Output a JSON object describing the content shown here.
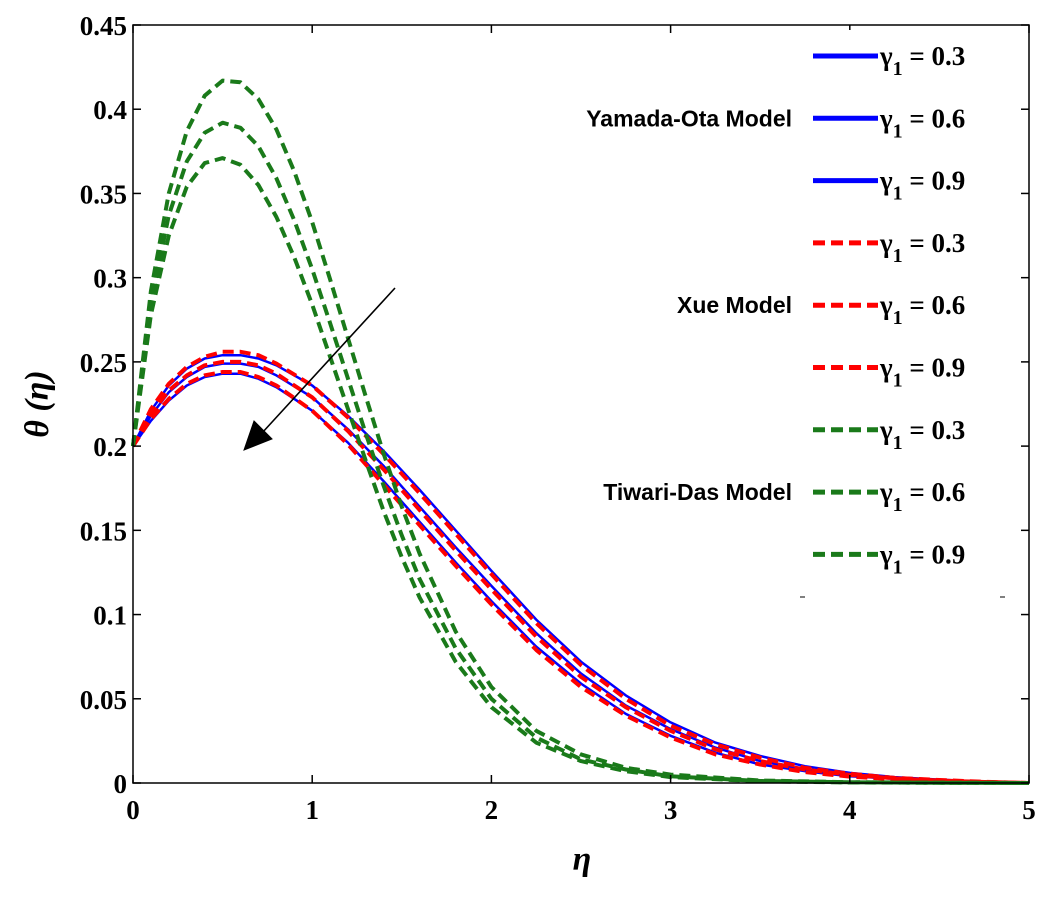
{
  "chart_data": {
    "type": "line",
    "title": "",
    "xlabel": "η",
    "ylabel": "θ (η)",
    "xlim": [
      0,
      5
    ],
    "ylim": [
      0,
      0.45
    ],
    "xticks": [
      0,
      1,
      2,
      3,
      4,
      5
    ],
    "xtick_labels": [
      "0",
      "1",
      "2",
      "3",
      "4",
      "5"
    ],
    "yticks": [
      0,
      0.05,
      0.1,
      0.15,
      0.2,
      0.25,
      0.3,
      0.35,
      0.4,
      0.45
    ],
    "ytick_labels": [
      "0",
      "0.05",
      "0.1",
      "0.15",
      "0.2",
      "0.25",
      "0.3",
      "0.35",
      "0.4",
      "0.45"
    ],
    "grid": false,
    "legend_position": "top-right",
    "annotation": "arrow indicating decreasing θ with increasing γ1",
    "legend_groups": [
      {
        "label": "Yamada-Ota Model",
        "color": "#0000ff",
        "style": "solid"
      },
      {
        "label": "Xue Model",
        "color": "#ff0000",
        "style": "dashed"
      },
      {
        "label": "Tiwari-Das Model",
        "color": "#1a7a1a",
        "style": "dashed"
      }
    ],
    "legend_symbol": "γ",
    "legend_subscript": "1",
    "legend_entries": [
      " = 0.3",
      " = 0.6",
      " = 0.9",
      " = 0.3",
      " = 0.6",
      " = 0.9",
      " = 0.3",
      " = 0.6",
      " = 0.9"
    ],
    "series": [
      {
        "name": "Yamada-Ota γ1 = 0.3",
        "color": "#0000ff",
        "style": "solid",
        "x": [
          0,
          0.1,
          0.2,
          0.3,
          0.4,
          0.5,
          0.6,
          0.7,
          0.8,
          1.0,
          1.2,
          1.4,
          1.6,
          1.8,
          2.0,
          2.25,
          2.5,
          2.75,
          3.0,
          3.25,
          3.5,
          3.75,
          4.0,
          4.25,
          4.5,
          4.75,
          5.0
        ],
        "y": [
          0.2,
          0.221,
          0.236,
          0.246,
          0.252,
          0.254,
          0.254,
          0.252,
          0.248,
          0.236,
          0.218,
          0.197,
          0.174,
          0.15,
          0.126,
          0.097,
          0.072,
          0.052,
          0.036,
          0.024,
          0.016,
          0.01,
          0.006,
          0.0035,
          0.002,
          0.0008,
          0
        ]
      },
      {
        "name": "Yamada-Ota γ1 = 0.6",
        "color": "#0000ff",
        "style": "solid",
        "x": [
          0,
          0.1,
          0.2,
          0.3,
          0.4,
          0.5,
          0.6,
          0.7,
          0.8,
          1.0,
          1.2,
          1.4,
          1.6,
          1.8,
          2.0,
          2.25,
          2.5,
          2.75,
          3.0,
          3.25,
          3.5,
          3.75,
          4.0,
          4.25,
          4.5,
          4.75,
          5.0
        ],
        "y": [
          0.2,
          0.218,
          0.232,
          0.241,
          0.247,
          0.249,
          0.249,
          0.247,
          0.242,
          0.229,
          0.21,
          0.188,
          0.164,
          0.14,
          0.117,
          0.089,
          0.065,
          0.046,
          0.032,
          0.021,
          0.013,
          0.008,
          0.005,
          0.003,
          0.0015,
          0.0006,
          0
        ]
      },
      {
        "name": "Yamada-Ota γ1 = 0.9",
        "color": "#0000ff",
        "style": "solid",
        "x": [
          0,
          0.1,
          0.2,
          0.3,
          0.4,
          0.5,
          0.6,
          0.7,
          0.8,
          1.0,
          1.2,
          1.4,
          1.6,
          1.8,
          2.0,
          2.25,
          2.5,
          2.75,
          3.0,
          3.25,
          3.5,
          3.75,
          4.0,
          4.25,
          4.5,
          4.75,
          5.0
        ],
        "y": [
          0.2,
          0.215,
          0.227,
          0.236,
          0.241,
          0.243,
          0.243,
          0.24,
          0.235,
          0.221,
          0.202,
          0.179,
          0.155,
          0.131,
          0.108,
          0.081,
          0.059,
          0.041,
          0.028,
          0.018,
          0.011,
          0.007,
          0.004,
          0.0025,
          0.0012,
          0.0005,
          0
        ]
      },
      {
        "name": "Xue γ1 = 0.3",
        "color": "#ff0000",
        "style": "dashed",
        "x": [
          0,
          0.1,
          0.2,
          0.3,
          0.4,
          0.5,
          0.6,
          0.7,
          0.8,
          1.0,
          1.2,
          1.4,
          1.6,
          1.8,
          2.0,
          2.25,
          2.5,
          2.75,
          3.0,
          3.25,
          3.5,
          3.75,
          4.0,
          4.25,
          4.5,
          4.75,
          5.0
        ],
        "y": [
          0.2,
          0.222,
          0.237,
          0.247,
          0.253,
          0.256,
          0.256,
          0.254,
          0.249,
          0.236,
          0.217,
          0.195,
          0.172,
          0.148,
          0.124,
          0.095,
          0.07,
          0.05,
          0.034,
          0.023,
          0.015,
          0.009,
          0.0055,
          0.003,
          0.0018,
          0.0007,
          0
        ]
      },
      {
        "name": "Xue γ1 = 0.6",
        "color": "#ff0000",
        "style": "dashed",
        "x": [
          0,
          0.1,
          0.2,
          0.3,
          0.4,
          0.5,
          0.6,
          0.7,
          0.8,
          1.0,
          1.2,
          1.4,
          1.6,
          1.8,
          2.0,
          2.25,
          2.5,
          2.75,
          3.0,
          3.25,
          3.5,
          3.75,
          4.0,
          4.25,
          4.5,
          4.75,
          5.0
        ],
        "y": [
          0.2,
          0.219,
          0.233,
          0.242,
          0.248,
          0.25,
          0.25,
          0.248,
          0.243,
          0.229,
          0.209,
          0.186,
          0.162,
          0.138,
          0.115,
          0.087,
          0.063,
          0.045,
          0.031,
          0.02,
          0.013,
          0.008,
          0.0048,
          0.0028,
          0.0015,
          0.0006,
          0
        ]
      },
      {
        "name": "Xue γ1 = 0.9",
        "color": "#ff0000",
        "style": "dashed",
        "x": [
          0,
          0.1,
          0.2,
          0.3,
          0.4,
          0.5,
          0.6,
          0.7,
          0.8,
          1.0,
          1.2,
          1.4,
          1.6,
          1.8,
          2.0,
          2.25,
          2.5,
          2.75,
          3.0,
          3.25,
          3.5,
          3.75,
          4.0,
          4.25,
          4.5,
          4.75,
          5.0
        ],
        "y": [
          0.2,
          0.216,
          0.228,
          0.237,
          0.242,
          0.244,
          0.244,
          0.241,
          0.236,
          0.221,
          0.201,
          0.177,
          0.153,
          0.129,
          0.106,
          0.079,
          0.057,
          0.04,
          0.027,
          0.017,
          0.011,
          0.0065,
          0.0038,
          0.0022,
          0.0012,
          0.0005,
          0
        ]
      },
      {
        "name": "Tiwari-Das γ1 = 0.3",
        "color": "#1a7a1a",
        "style": "dashed",
        "x": [
          0,
          0.1,
          0.2,
          0.3,
          0.4,
          0.5,
          0.6,
          0.7,
          0.8,
          0.9,
          1.0,
          1.1,
          1.2,
          1.3,
          1.4,
          1.5,
          1.6,
          1.8,
          2.0,
          2.25,
          2.5,
          2.75,
          3.0,
          3.5,
          4.0,
          4.5,
          5.0
        ],
        "y": [
          0.2,
          0.292,
          0.35,
          0.387,
          0.408,
          0.417,
          0.416,
          0.406,
          0.388,
          0.363,
          0.333,
          0.299,
          0.264,
          0.229,
          0.195,
          0.164,
          0.136,
          0.09,
          0.057,
          0.031,
          0.017,
          0.009,
          0.005,
          0.0015,
          0.0005,
          0.0002,
          0
        ]
      },
      {
        "name": "Tiwari-Das γ1 = 0.6",
        "color": "#1a7a1a",
        "style": "dashed",
        "x": [
          0,
          0.1,
          0.2,
          0.3,
          0.4,
          0.5,
          0.6,
          0.7,
          0.8,
          0.9,
          1.0,
          1.1,
          1.2,
          1.3,
          1.4,
          1.5,
          1.6,
          1.8,
          2.0,
          2.25,
          2.5,
          2.75,
          3.0,
          3.5,
          4.0,
          4.5,
          5.0
        ],
        "y": [
          0.2,
          0.285,
          0.337,
          0.369,
          0.386,
          0.392,
          0.389,
          0.378,
          0.359,
          0.334,
          0.305,
          0.273,
          0.24,
          0.207,
          0.176,
          0.147,
          0.121,
          0.08,
          0.05,
          0.027,
          0.014,
          0.008,
          0.004,
          0.0012,
          0.0004,
          0.0001,
          0
        ]
      },
      {
        "name": "Tiwari-Das γ1 = 0.9",
        "color": "#1a7a1a",
        "style": "dashed",
        "x": [
          0,
          0.1,
          0.2,
          0.3,
          0.4,
          0.5,
          0.6,
          0.7,
          0.8,
          0.9,
          1.0,
          1.1,
          1.2,
          1.3,
          1.4,
          1.5,
          1.6,
          1.8,
          2.0,
          2.25,
          2.5,
          2.75,
          3.0,
          3.5,
          4.0,
          4.5,
          5.0
        ],
        "y": [
          0.2,
          0.278,
          0.325,
          0.354,
          0.368,
          0.371,
          0.367,
          0.355,
          0.336,
          0.312,
          0.284,
          0.253,
          0.222,
          0.191,
          0.161,
          0.134,
          0.11,
          0.072,
          0.045,
          0.024,
          0.013,
          0.007,
          0.0035,
          0.001,
          0.0003,
          0.0001,
          0
        ]
      }
    ]
  }
}
